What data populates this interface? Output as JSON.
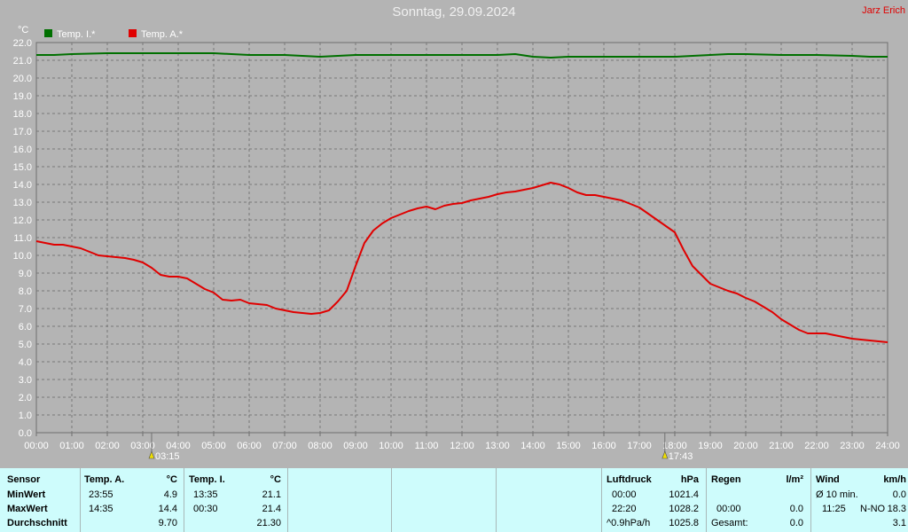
{
  "title": "Sonntag, 29.09.2024",
  "author": "Jarz Erich",
  "chart_data": {
    "type": "line",
    "ylabel": "°C",
    "ylim": [
      0,
      22
    ],
    "ytick_step": 1,
    "ytick_labels": [
      "0.0",
      "1.0",
      "2.0",
      "3.0",
      "4.0",
      "5.0",
      "6.0",
      "7.0",
      "8.0",
      "9.0",
      "10.0",
      "11.0",
      "12.0",
      "13.0",
      "14.0",
      "15.0",
      "16.0",
      "17.0",
      "18.0",
      "19.0",
      "20.0",
      "21.0",
      "22.0"
    ],
    "xlim": [
      0,
      24
    ],
    "xtick_labels": [
      "00:00",
      "01:00",
      "02:00",
      "03:00",
      "04:00",
      "05:00",
      "06:00",
      "07:00",
      "08:00",
      "09:00",
      "10:00",
      "11:00",
      "12:00",
      "13:00",
      "14:00",
      "15:00",
      "16:00",
      "17:00",
      "18:00",
      "19:00",
      "20:00",
      "21:00",
      "22:00",
      "23:00",
      "24:00"
    ],
    "grid": true,
    "legend_position": "top-left",
    "sunrise": {
      "x": 3.25,
      "label": "03:15"
    },
    "sunset": {
      "x": 17.72,
      "label": "17:43"
    },
    "series": [
      {
        "name": "Temp. I.*",
        "color": "#007000",
        "x": [
          0,
          0.5,
          1,
          2,
          3,
          4,
          4.5,
          5,
          5.5,
          6,
          7,
          7.5,
          8,
          8.5,
          9,
          10,
          11,
          12,
          13,
          13.5,
          14,
          14.5,
          15,
          16,
          17,
          18,
          18.5,
          19,
          19.5,
          20,
          21,
          22,
          23,
          23.5,
          24
        ],
        "y": [
          21.3,
          21.3,
          21.35,
          21.4,
          21.4,
          21.4,
          21.4,
          21.4,
          21.35,
          21.3,
          21.3,
          21.25,
          21.2,
          21.25,
          21.3,
          21.3,
          21.3,
          21.3,
          21.3,
          21.35,
          21.2,
          21.15,
          21.2,
          21.2,
          21.2,
          21.2,
          21.25,
          21.3,
          21.35,
          21.35,
          21.3,
          21.3,
          21.25,
          21.2,
          21.2
        ]
      },
      {
        "name": "Temp. A.*",
        "color": "#e00000",
        "x": [
          0,
          0.25,
          0.5,
          0.75,
          1,
          1.25,
          1.5,
          1.75,
          2,
          2.25,
          2.5,
          2.75,
          3,
          3.25,
          3.5,
          3.75,
          4,
          4.25,
          4.5,
          4.75,
          5,
          5.25,
          5.5,
          5.75,
          6,
          6.25,
          6.5,
          6.75,
          7,
          7.25,
          7.5,
          7.75,
          8,
          8.25,
          8.5,
          8.75,
          9,
          9.25,
          9.5,
          9.75,
          10,
          10.25,
          10.5,
          10.75,
          11,
          11.25,
          11.5,
          11.75,
          12,
          12.25,
          12.5,
          12.75,
          13,
          13.25,
          13.5,
          13.75,
          14,
          14.25,
          14.5,
          14.75,
          15,
          15.25,
          15.5,
          15.75,
          16,
          16.25,
          16.5,
          16.75,
          17,
          17.25,
          17.5,
          17.75,
          18,
          18.25,
          18.5,
          18.75,
          19,
          19.25,
          19.5,
          19.75,
          20,
          20.25,
          20.5,
          20.75,
          21,
          21.25,
          21.5,
          21.75,
          22,
          22.25,
          22.5,
          22.75,
          23,
          23.25,
          23.5,
          23.75,
          24
        ],
        "y": [
          10.8,
          10.7,
          10.6,
          10.6,
          10.5,
          10.4,
          10.2,
          10.0,
          9.95,
          9.9,
          9.85,
          9.75,
          9.6,
          9.3,
          8.9,
          8.8,
          8.8,
          8.7,
          8.4,
          8.1,
          7.9,
          7.5,
          7.45,
          7.5,
          7.3,
          7.25,
          7.2,
          7.0,
          6.9,
          6.8,
          6.75,
          6.7,
          6.75,
          6.9,
          7.4,
          8.0,
          9.4,
          10.7,
          11.4,
          11.8,
          12.1,
          12.3,
          12.5,
          12.65,
          12.75,
          12.6,
          12.8,
          12.9,
          12.95,
          13.1,
          13.2,
          13.3,
          13.45,
          13.55,
          13.6,
          13.7,
          13.8,
          13.95,
          14.1,
          14.0,
          13.8,
          13.55,
          13.4,
          13.4,
          13.3,
          13.2,
          13.1,
          12.9,
          12.7,
          12.35,
          12.0,
          11.65,
          11.3,
          10.3,
          9.4,
          8.9,
          8.4,
          8.2,
          8.0,
          7.85,
          7.6,
          7.4,
          7.1,
          6.8,
          6.4,
          6.1,
          5.8,
          5.6,
          5.6,
          5.6,
          5.5,
          5.4,
          5.3,
          5.25,
          5.2,
          5.15,
          5.1
        ]
      }
    ]
  },
  "table": {
    "sensor_header": "Sensor",
    "row_labels": [
      "MinWert",
      "MaxWert",
      "Durchschnitt"
    ],
    "ta": {
      "header": "Temp. A.",
      "unit": "°C",
      "min_time": "23:55",
      "min_val": "4.9",
      "max_time": "14:35",
      "max_val": "14.4",
      "avg": "9.70"
    },
    "ti": {
      "header": "Temp. I.",
      "unit": "°C",
      "min_time": "13:35",
      "min_val": "21.1",
      "max_time": "00:30",
      "max_val": "21.4",
      "avg": "21.30"
    },
    "luft": {
      "header": "Luftdruck",
      "unit": "hPa",
      "min_time": "00:00",
      "min_val": "1021.4",
      "max_time": "22:20",
      "max_val": "1028.2",
      "trend": "^0.9hPa/h",
      "avg": "1025.8"
    },
    "regen": {
      "header": "Regen",
      "unit": "l/m²",
      "max_time": "00:00",
      "max_val": "0.0",
      "total_label": "Gesamt:",
      "total": "0.0"
    },
    "wind": {
      "header": "Wind",
      "unit": "km/h",
      "avg_label": "Ø 10 min.",
      "avg_val": "0.0",
      "max_time": "11:25",
      "max_dir": "N-NO",
      "max_val": "18.3",
      "avg": "3.1"
    }
  }
}
